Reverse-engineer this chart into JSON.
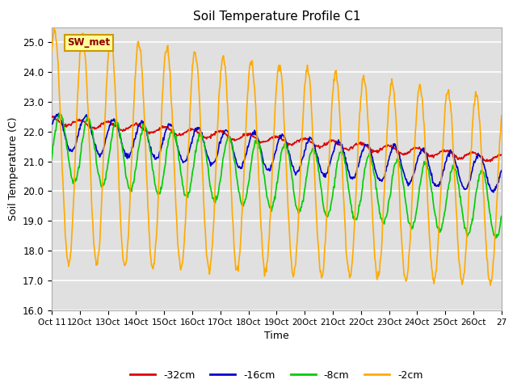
{
  "title": "Soil Temperature Profile C1",
  "xlabel": "Time",
  "ylabel": "Soil Temperature (C)",
  "ylim": [
    16.0,
    25.5
  ],
  "background_color": "#ffffff",
  "plot_bg_color": "#e0e0e0",
  "grid_color": "#ffffff",
  "annotation_text": "SW_met",
  "annotation_bg": "#ffff99",
  "annotation_border": "#cc9900",
  "series": [
    {
      "label": "-32cm",
      "color": "#dd0000",
      "linewidth": 1.2
    },
    {
      "label": "-16cm",
      "color": "#0000cc",
      "linewidth": 1.2
    },
    {
      "label": "-8cm",
      "color": "#00cc00",
      "linewidth": 1.2
    },
    {
      "label": "-2cm",
      "color": "#ffaa00",
      "linewidth": 1.2
    }
  ],
  "num_points": 768,
  "num_days": 16
}
